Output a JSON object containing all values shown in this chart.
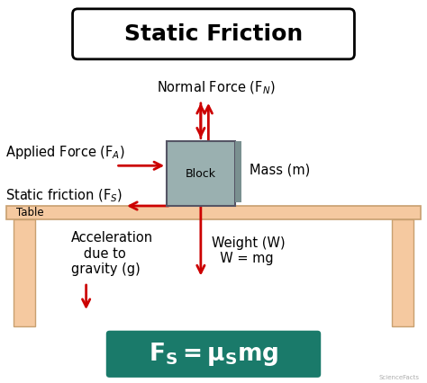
{
  "title": "Static Friction",
  "bg_color": "#ffffff",
  "table_color": "#f5c9a0",
  "table_edge_color": "#c8a070",
  "block_fill_color": "#9ab0b0",
  "block_edge_color": "#555565",
  "block_shadow_color": "#7a9090",
  "arrow_color": "#cc0000",
  "formula_bg": "#1a7a6a",
  "formula_text_color": "#ffffff",
  "title_fontsize": 18,
  "label_fontsize": 10.5,
  "formula_fontsize": 19,
  "watermark": "ScienceFacts",
  "labels": {
    "normal_force": "Normal Force (F$_{N}$)",
    "applied_force": "Applied Force (F$_{A}$)",
    "static_friction": "Static friction (F$_{S}$)",
    "mass": "Mass (m)",
    "block": "Block",
    "table": "Table",
    "accel_gravity": "Acceleration\n   due to\ngravity (g)",
    "weight": "Weight (W)\n  W = mg"
  },
  "coord": {
    "xlim": [
      0,
      10
    ],
    "ylim": [
      0,
      9
    ]
  }
}
